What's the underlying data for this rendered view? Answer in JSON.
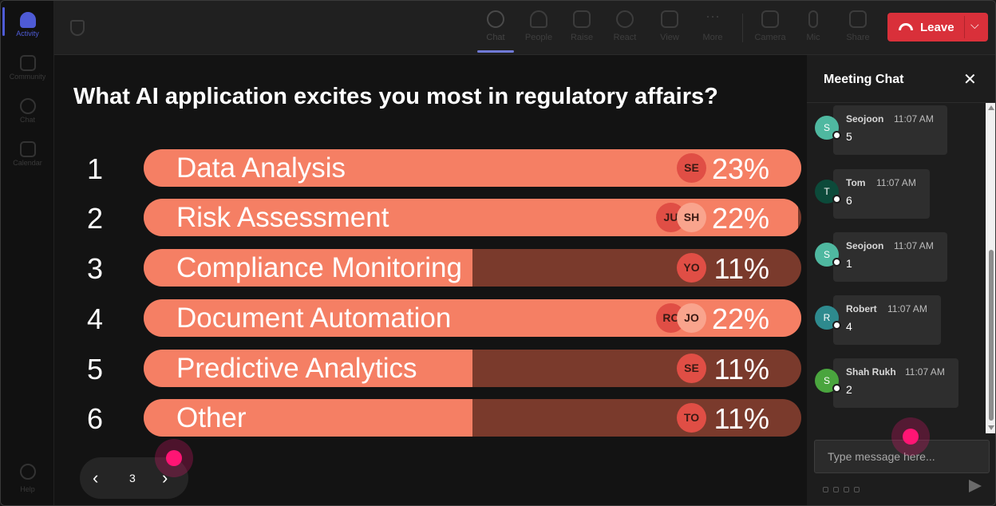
{
  "rail": {
    "items": [
      {
        "label": "Activity"
      },
      {
        "label": "Community"
      },
      {
        "label": "Chat"
      },
      {
        "label": "Calendar"
      }
    ],
    "help_label": "Help"
  },
  "toolbar": {
    "buttons": [
      {
        "label": "Chat"
      },
      {
        "label": "People"
      },
      {
        "label": "Raise"
      },
      {
        "label": "React"
      },
      {
        "label": "View"
      },
      {
        "label": "More"
      },
      {
        "label": "Camera"
      },
      {
        "label": "Mic"
      },
      {
        "label": "Share"
      }
    ],
    "leave_label": "Leave",
    "leave_color": "#d9303a"
  },
  "poll": {
    "question": "What AI application excites you most in regulatory affairs?",
    "fill_color": "#f57f64",
    "track_color": "#7a3a2c",
    "options": [
      {
        "number": "1",
        "label": "Data Analysis",
        "percent_text": "23%",
        "fill_fraction": 1.0,
        "voters": [
          "SE"
        ]
      },
      {
        "number": "2",
        "label": "Risk Assessment",
        "percent_text": "22%",
        "fill_fraction": 0.995,
        "voters": [
          "JU",
          "SH"
        ]
      },
      {
        "number": "3",
        "label": "Compliance Monitoring",
        "percent_text": "11%",
        "fill_fraction": 0.5,
        "voters": [
          "YO"
        ]
      },
      {
        "number": "4",
        "label": "Document Automation",
        "percent_text": "22%",
        "fill_fraction": 1.0,
        "voters": [
          "RC",
          "JO"
        ]
      },
      {
        "number": "5",
        "label": "Predictive Analytics",
        "percent_text": "11%",
        "fill_fraction": 0.5,
        "voters": [
          "SE"
        ]
      },
      {
        "number": "6",
        "label": "Other",
        "percent_text": "11%",
        "fill_fraction": 0.5,
        "voters": [
          "TO"
        ]
      }
    ],
    "pager": {
      "page": "3"
    }
  },
  "chat": {
    "title": "Meeting Chat",
    "placeholder": "Type message here...",
    "messages": [
      {
        "initial": "S",
        "author": "Seojoon",
        "time": "11:07 AM",
        "text": "5",
        "avatar_color": "#4fb8a0"
      },
      {
        "initial": "T",
        "author": "Tom",
        "time": "11:07 AM",
        "text": "6",
        "avatar_color": "#0c4a3a"
      },
      {
        "initial": "S",
        "author": "Seojoon",
        "time": "11:07 AM",
        "text": "1",
        "avatar_color": "#4fb8a0"
      },
      {
        "initial": "R",
        "author": "Robert",
        "time": "11:07 AM",
        "text": "4",
        "avatar_color": "#2e8a8e"
      },
      {
        "initial": "S",
        "author": "Shah Rukh",
        "time": "11:07 AM",
        "text": "2",
        "avatar_color": "#4aa53e"
      }
    ]
  }
}
